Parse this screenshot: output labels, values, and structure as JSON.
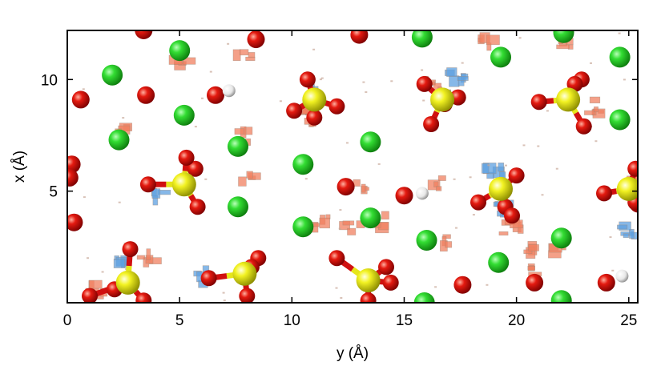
{
  "figure": {
    "xlabel": "y (Å)",
    "ylabel": "x (Å)",
    "x_range": [
      0,
      25.4
    ],
    "y_range": [
      0,
      12.2
    ],
    "x_ticks": [
      {
        "value": 0,
        "label": "0"
      },
      {
        "value": 5,
        "label": "5"
      },
      {
        "value": 10,
        "label": "10"
      },
      {
        "value": 15,
        "label": "15"
      },
      {
        "value": 20,
        "label": "20"
      },
      {
        "value": 25,
        "label": "25"
      }
    ],
    "y_ticks": [
      {
        "value": 5,
        "label": "5"
      },
      {
        "value": 10,
        "label": "10"
      }
    ],
    "colors": {
      "chlorine": "#22cc22",
      "oxygen": "#dd1111",
      "sulfur": "#eeee11",
      "hydrogen": "#f2f2f2",
      "density_positive": "#f08060",
      "density_negative": "#5ea0e0",
      "axes": "#000000"
    }
  },
  "atoms": {
    "chlorine": [
      [
        2.0,
        10.2
      ],
      [
        5.0,
        11.3
      ],
      [
        2.3,
        7.3
      ],
      [
        5.2,
        8.4
      ],
      [
        7.6,
        7.0
      ],
      [
        10.5,
        6.2
      ],
      [
        7.6,
        4.3
      ],
      [
        10.5,
        3.4
      ],
      [
        13.5,
        7.2
      ],
      [
        13.5,
        3.8
      ],
      [
        15.8,
        11.9
      ],
      [
        16.0,
        2.8
      ],
      [
        19.3,
        11.0
      ],
      [
        19.2,
        1.8
      ],
      [
        22.0,
        2.9
      ],
      [
        22.1,
        12.1
      ],
      [
        24.6,
        11.0
      ],
      [
        24.6,
        8.2
      ],
      [
        22.0,
        0.1
      ],
      [
        15.9,
        0.0
      ]
    ],
    "oxygen": [
      [
        0.6,
        9.1
      ],
      [
        3.5,
        9.3
      ],
      [
        3.4,
        12.2
      ],
      [
        8.4,
        11.8
      ],
      [
        0.2,
        6.2
      ],
      [
        0.1,
        5.6
      ],
      [
        0.3,
        3.6
      ],
      [
        12.4,
        5.2
      ],
      [
        15.0,
        4.8
      ],
      [
        20.8,
        0.9
      ],
      [
        17.6,
        0.8
      ],
      [
        24.0,
        0.9
      ],
      [
        6.6,
        9.3
      ],
      [
        13.0,
        12.0
      ]
    ],
    "hydrogen": [
      [
        7.2,
        9.5
      ],
      [
        15.8,
        4.9
      ],
      [
        24.7,
        1.2
      ]
    ],
    "sulfate": [
      {
        "s": [
          11.0,
          9.1
        ],
        "o": [
          [
            10.7,
            10.0
          ],
          [
            10.1,
            8.6
          ],
          [
            12.0,
            8.8
          ],
          [
            11.0,
            8.3
          ]
        ]
      },
      {
        "s": [
          16.7,
          9.1
        ],
        "o": [
          [
            15.9,
            9.8
          ],
          [
            16.2,
            8.0
          ],
          [
            17.4,
            9.2
          ],
          [
            16.8,
            8.9
          ]
        ]
      },
      {
        "s": [
          22.3,
          9.1
        ],
        "o": [
          [
            21.0,
            9.0
          ],
          [
            22.9,
            10.0
          ],
          [
            23.0,
            7.9
          ],
          [
            22.6,
            9.8
          ]
        ]
      },
      {
        "s": [
          5.2,
          5.3
        ],
        "o": [
          [
            3.6,
            5.3
          ],
          [
            5.7,
            6.0
          ],
          [
            5.8,
            4.3
          ],
          [
            5.3,
            6.5
          ]
        ]
      },
      {
        "s": [
          19.3,
          5.1
        ],
        "o": [
          [
            18.3,
            4.5
          ],
          [
            20.0,
            5.7
          ],
          [
            19.5,
            4.3
          ],
          [
            19.8,
            3.9
          ]
        ]
      },
      {
        "s": [
          25.0,
          5.1
        ],
        "o": [
          [
            23.9,
            4.9
          ],
          [
            25.3,
            6.0
          ],
          [
            25.4,
            4.4
          ],
          [
            25.3,
            4.5
          ]
        ]
      },
      {
        "s": [
          7.9,
          1.3
        ],
        "o": [
          [
            6.3,
            1.1
          ],
          [
            8.5,
            2.0
          ],
          [
            8.0,
            0.3
          ],
          [
            8.2,
            1.6
          ]
        ]
      },
      {
        "s": [
          13.4,
          1.0
        ],
        "o": [
          [
            12.0,
            2.0
          ],
          [
            14.2,
            1.6
          ],
          [
            14.4,
            0.9
          ],
          [
            13.4,
            0.1
          ]
        ]
      },
      {
        "s": [
          2.7,
          0.9
        ],
        "o": [
          [
            1.0,
            0.3
          ],
          [
            2.8,
            2.4
          ],
          [
            3.4,
            0.1
          ],
          [
            2.1,
            0.6
          ]
        ]
      }
    ]
  },
  "density_patches": {
    "positive": [
      [
        2.6,
        7.6
      ],
      [
        7.7,
        7.5
      ],
      [
        8.0,
        5.5
      ],
      [
        12.7,
        3.4
      ],
      [
        13.8,
        3.6
      ],
      [
        11.3,
        3.7
      ],
      [
        16.7,
        5.3
      ],
      [
        16.8,
        2.7
      ],
      [
        21.8,
        2.2
      ],
      [
        20.4,
        2.5
      ],
      [
        19.8,
        3.4
      ],
      [
        22.1,
        11.5
      ],
      [
        18.6,
        11.7
      ],
      [
        1.4,
        0.6
      ],
      [
        5.1,
        10.8
      ],
      [
        7.9,
        11.0
      ],
      [
        13.2,
        5.1
      ],
      [
        23.4,
        8.8
      ],
      [
        20.8,
        1.3
      ],
      [
        25.2,
        5.4
      ],
      [
        10.7,
        8.3
      ],
      [
        3.6,
        2.0
      ],
      [
        16.3,
        9.7
      ]
    ],
    "negative": [
      [
        16.8,
        9.1
      ],
      [
        19.0,
        5.9
      ],
      [
        19.3,
        4.2
      ],
      [
        10.9,
        9.5
      ],
      [
        2.4,
        2.0
      ],
      [
        25.1,
        3.2
      ],
      [
        6.1,
        1.1
      ],
      [
        4.2,
        4.9
      ],
      [
        17.4,
        10.2
      ]
    ]
  }
}
